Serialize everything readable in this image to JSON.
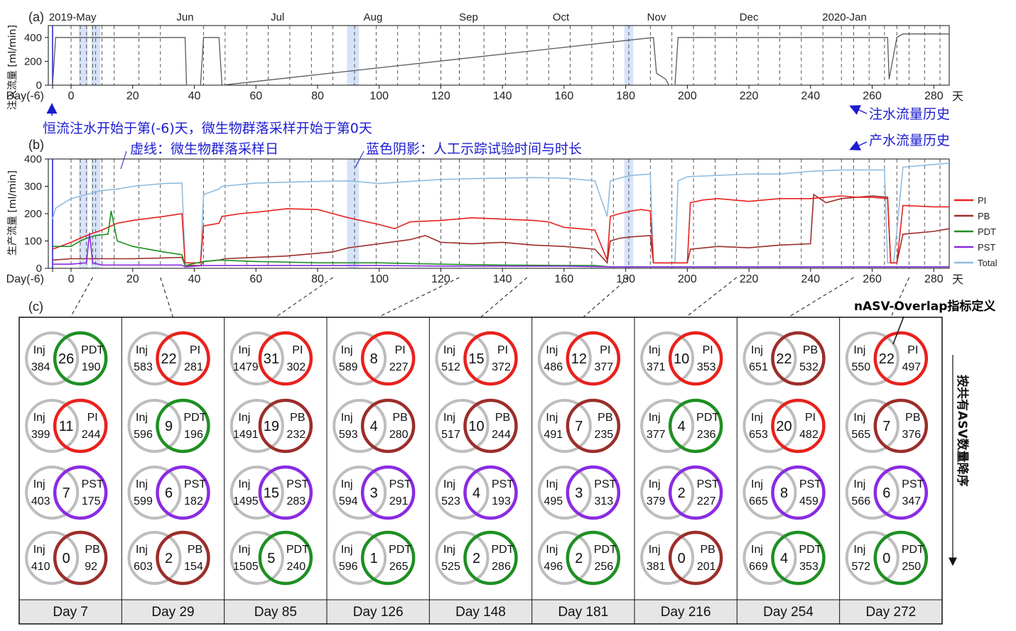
{
  "panel_labels": {
    "a": "(a)",
    "b": "(b)",
    "c": "(c)"
  },
  "months": [
    "2019-May",
    "Jun",
    "Jul",
    "Aug",
    "Sep",
    "Oct",
    "Nov",
    "Dec",
    "2020-Jan"
  ],
  "axis": {
    "x_first_label": "Day(-6)",
    "x_ticks": [
      "0",
      "20",
      "40",
      "60",
      "80",
      "100",
      "120",
      "140",
      "160",
      "180",
      "200",
      "220",
      "240",
      "260",
      "280"
    ],
    "x_unit": "天",
    "a_ylabel": "注入流量 [ml/min]",
    "a_yticks": [
      "0",
      "200",
      "400"
    ],
    "b_ylabel": "生产流量 [ml/min]",
    "b_yticks": [
      "0",
      "100",
      "200",
      "300",
      "400"
    ]
  },
  "annotations": {
    "inject_start": "恒流注水开始于第(-6)天，微生物群落采样开始于第0天",
    "dashed_meaning": "虚线：微生物群落采样日",
    "shade_meaning": "蓝色阴影：人工示踪试验时间与时长",
    "inj_history": "注水流量历史",
    "prod_history": "产水流量历史"
  },
  "overlap_title": "nASV-Overlap指标定义",
  "side_label": "按共有ASV数量降序",
  "colors": {
    "PI": "#e8211d",
    "PB": "#9b2e2a",
    "PDT": "#1e8f23",
    "PST": "#8a2be2",
    "Total": "#8fbde0",
    "Inj": "#5a5a5a",
    "blue": "#1c1cd0"
  },
  "chart_data": [
    {
      "type": "line",
      "panel": "a",
      "title": "",
      "xlabel": "天",
      "ylabel": "注入流量 [ml/min]",
      "xlim": [
        -6,
        285
      ],
      "ylim": [
        0,
        500
      ],
      "sampling_days": [
        0,
        3,
        5,
        7,
        8,
        10,
        14,
        22,
        29,
        43,
        50,
        57,
        64,
        71,
        78,
        85,
        92,
        99,
        106,
        113,
        120,
        126,
        134,
        141,
        148,
        155,
        162,
        169,
        176,
        181,
        188,
        195,
        202,
        209,
        216,
        223,
        230,
        237,
        244,
        250,
        254,
        259,
        264,
        268,
        272,
        277,
        282
      ],
      "tracer_tests": [
        [
          3,
          5
        ],
        [
          7,
          9
        ],
        [
          90,
          93
        ],
        [
          180,
          182
        ]
      ],
      "series": [
        {
          "name": "Inj",
          "x": [
            -6,
            -5,
            37,
            37.5,
            42,
            43,
            48,
            49,
            189,
            190,
            193,
            194,
            196,
            197,
            265,
            265.5,
            268,
            270,
            285
          ],
          "y": [
            0,
            400,
            400,
            0,
            0,
            400,
            400,
            0,
            400,
            100,
            50,
            0,
            0,
            400,
            400,
            50,
            400,
            430,
            430
          ]
        }
      ]
    },
    {
      "type": "line",
      "panel": "b",
      "title": "",
      "xlabel": "天",
      "ylabel": "生产流量 [ml/min]",
      "xlim": [
        -6,
        285
      ],
      "ylim": [
        0,
        400
      ],
      "series": [
        {
          "name": "PI",
          "x": [
            -6,
            0,
            5,
            10,
            15,
            20,
            30,
            36,
            37,
            38,
            42,
            43,
            48,
            49,
            55,
            60,
            70,
            80,
            85,
            90,
            100,
            105,
            110,
            120,
            130,
            140,
            150,
            155,
            160,
            165,
            170,
            174,
            175,
            178,
            182,
            185,
            188,
            189,
            200,
            201,
            205,
            210,
            220,
            230,
            240,
            245,
            250,
            255,
            260,
            265,
            266,
            268,
            270,
            280,
            285
          ],
          "y": [
            70,
            95,
            120,
            140,
            165,
            175,
            190,
            200,
            20,
            20,
            20,
            155,
            165,
            190,
            200,
            205,
            218,
            215,
            200,
            185,
            160,
            145,
            170,
            175,
            185,
            180,
            175,
            170,
            150,
            145,
            140,
            30,
            190,
            200,
            210,
            215,
            210,
            20,
            20,
            240,
            250,
            255,
            245,
            255,
            255,
            260,
            265,
            260,
            260,
            255,
            20,
            20,
            230,
            225,
            225
          ]
        },
        {
          "name": "PB",
          "x": [
            -6,
            0,
            10,
            20,
            30,
            36,
            37,
            42,
            43,
            48,
            50,
            60,
            70,
            80,
            85,
            90,
            100,
            110,
            115,
            120,
            130,
            140,
            150,
            160,
            170,
            174,
            175,
            178,
            182,
            188,
            189,
            200,
            201,
            210,
            220,
            230,
            240,
            241,
            245,
            250,
            260,
            265,
            266,
            268,
            270,
            280,
            285
          ],
          "y": [
            30,
            35,
            35,
            35,
            38,
            40,
            10,
            10,
            25,
            30,
            35,
            40,
            45,
            55,
            60,
            75,
            90,
            105,
            120,
            95,
            90,
            95,
            85,
            80,
            70,
            20,
            100,
            110,
            115,
            120,
            20,
            20,
            70,
            80,
            75,
            85,
            90,
            270,
            240,
            255,
            265,
            260,
            20,
            20,
            125,
            135,
            145
          ]
        },
        {
          "name": "PDT",
          "x": [
            -6,
            0,
            3,
            5,
            8,
            12,
            13,
            15,
            20,
            30,
            36,
            37,
            43,
            48,
            60,
            80,
            100,
            120,
            140,
            160,
            170,
            175,
            180,
            200,
            220,
            240,
            260,
            280,
            285
          ],
          "y": [
            80,
            80,
            100,
            110,
            120,
            125,
            210,
            100,
            80,
            60,
            50,
            10,
            25,
            30,
            25,
            20,
            20,
            15,
            12,
            10,
            10,
            5,
            5,
            5,
            5,
            5,
            5,
            5,
            5
          ]
        },
        {
          "name": "PST",
          "x": [
            -6,
            0,
            5,
            6,
            7,
            10,
            20,
            36,
            37,
            43,
            60,
            80,
            100,
            120,
            140,
            160,
            175,
            180,
            200,
            220,
            240,
            260,
            280,
            285
          ],
          "y": [
            15,
            15,
            20,
            130,
            20,
            12,
            12,
            12,
            5,
            10,
            10,
            10,
            10,
            8,
            8,
            8,
            5,
            5,
            5,
            5,
            5,
            5,
            5,
            5
          ]
        },
        {
          "name": "Total",
          "x": [
            -6,
            -5,
            0,
            5,
            10,
            15,
            20,
            30,
            36,
            37,
            42,
            43,
            48,
            49,
            60,
            70,
            80,
            90,
            100,
            110,
            120,
            130,
            140,
            150,
            160,
            170,
            174,
            175,
            178,
            182,
            188,
            189,
            196,
            197,
            200,
            210,
            220,
            230,
            240,
            250,
            260,
            264,
            265,
            267,
            270,
            280,
            285
          ],
          "y": [
            180,
            220,
            255,
            270,
            285,
            290,
            300,
            310,
            312,
            20,
            20,
            270,
            290,
            300,
            312,
            315,
            318,
            320,
            310,
            318,
            325,
            328,
            330,
            332,
            330,
            320,
            190,
            320,
            330,
            340,
            345,
            20,
            20,
            320,
            335,
            340,
            345,
            345,
            355,
            360,
            360,
            360,
            20,
            20,
            370,
            380,
            385
          ]
        }
      ]
    },
    {
      "type": "venn",
      "panel": "c",
      "title": "nASV-Overlap指标定义",
      "columns": [
        {
          "day": "Day 7",
          "rows": [
            {
              "well": "PDT",
              "overlap": "26",
              "inj": "384",
              "n": "190"
            },
            {
              "well": "PI",
              "overlap": "11",
              "inj": "399",
              "n": "244"
            },
            {
              "well": "PST",
              "overlap": "7",
              "inj": "403",
              "n": "175"
            },
            {
              "well": "PB",
              "overlap": "0",
              "inj": "410",
              "n": "92"
            }
          ]
        },
        {
          "day": "Day 29",
          "rows": [
            {
              "well": "PI",
              "overlap": "22",
              "inj": "583",
              "n": "281"
            },
            {
              "well": "PDT",
              "overlap": "9",
              "inj": "596",
              "n": "196"
            },
            {
              "well": "PST",
              "overlap": "6",
              "inj": "599",
              "n": "182"
            },
            {
              "well": "PB",
              "overlap": "2",
              "inj": "603",
              "n": "154"
            }
          ]
        },
        {
          "day": "Day 85",
          "rows": [
            {
              "well": "PI",
              "overlap": "31",
              "inj": "1479",
              "n": "302"
            },
            {
              "well": "PB",
              "overlap": "19",
              "inj": "1491",
              "n": "232"
            },
            {
              "well": "PST",
              "overlap": "15",
              "inj": "1495",
              "n": "283"
            },
            {
              "well": "PDT",
              "overlap": "5",
              "inj": "1505",
              "n": "240"
            }
          ]
        },
        {
          "day": "Day 126",
          "rows": [
            {
              "well": "PI",
              "overlap": "8",
              "inj": "589",
              "n": "227"
            },
            {
              "well": "PB",
              "overlap": "4",
              "inj": "593",
              "n": "280"
            },
            {
              "well": "PST",
              "overlap": "3",
              "inj": "594",
              "n": "291"
            },
            {
              "well": "PDT",
              "overlap": "1",
              "inj": "596",
              "n": "265"
            }
          ]
        },
        {
          "day": "Day 148",
          "rows": [
            {
              "well": "PI",
              "overlap": "15",
              "inj": "512",
              "n": "372"
            },
            {
              "well": "PB",
              "overlap": "10",
              "inj": "517",
              "n": "244"
            },
            {
              "well": "PST",
              "overlap": "4",
              "inj": "523",
              "n": "193"
            },
            {
              "well": "PDT",
              "overlap": "2",
              "inj": "525",
              "n": "286"
            }
          ]
        },
        {
          "day": "Day 181",
          "rows": [
            {
              "well": "PI",
              "overlap": "12",
              "inj": "486",
              "n": "377"
            },
            {
              "well": "PB",
              "overlap": "7",
              "inj": "491",
              "n": "235"
            },
            {
              "well": "PST",
              "overlap": "3",
              "inj": "495",
              "n": "313"
            },
            {
              "well": "PDT",
              "overlap": "2",
              "inj": "496",
              "n": "256"
            }
          ]
        },
        {
          "day": "Day 216",
          "rows": [
            {
              "well": "PI",
              "overlap": "10",
              "inj": "371",
              "n": "353"
            },
            {
              "well": "PDT",
              "overlap": "4",
              "inj": "377",
              "n": "236"
            },
            {
              "well": "PST",
              "overlap": "2",
              "inj": "379",
              "n": "227"
            },
            {
              "well": "PB",
              "overlap": "0",
              "inj": "381",
              "n": "201"
            }
          ]
        },
        {
          "day": "Day 254",
          "rows": [
            {
              "well": "PB",
              "overlap": "22",
              "inj": "651",
              "n": "532"
            },
            {
              "well": "PI",
              "overlap": "20",
              "inj": "653",
              "n": "482"
            },
            {
              "well": "PST",
              "overlap": "8",
              "inj": "665",
              "n": "459"
            },
            {
              "well": "PDT",
              "overlap": "4",
              "inj": "669",
              "n": "353"
            }
          ]
        },
        {
          "day": "Day 272",
          "rows": [
            {
              "well": "PI",
              "overlap": "22",
              "inj": "550",
              "n": "497"
            },
            {
              "well": "PB",
              "overlap": "7",
              "inj": "565",
              "n": "376"
            },
            {
              "well": "PST",
              "overlap": "6",
              "inj": "566",
              "n": "347"
            },
            {
              "well": "PDT",
              "overlap": "0",
              "inj": "572",
              "n": "250"
            }
          ]
        }
      ]
    }
  ]
}
